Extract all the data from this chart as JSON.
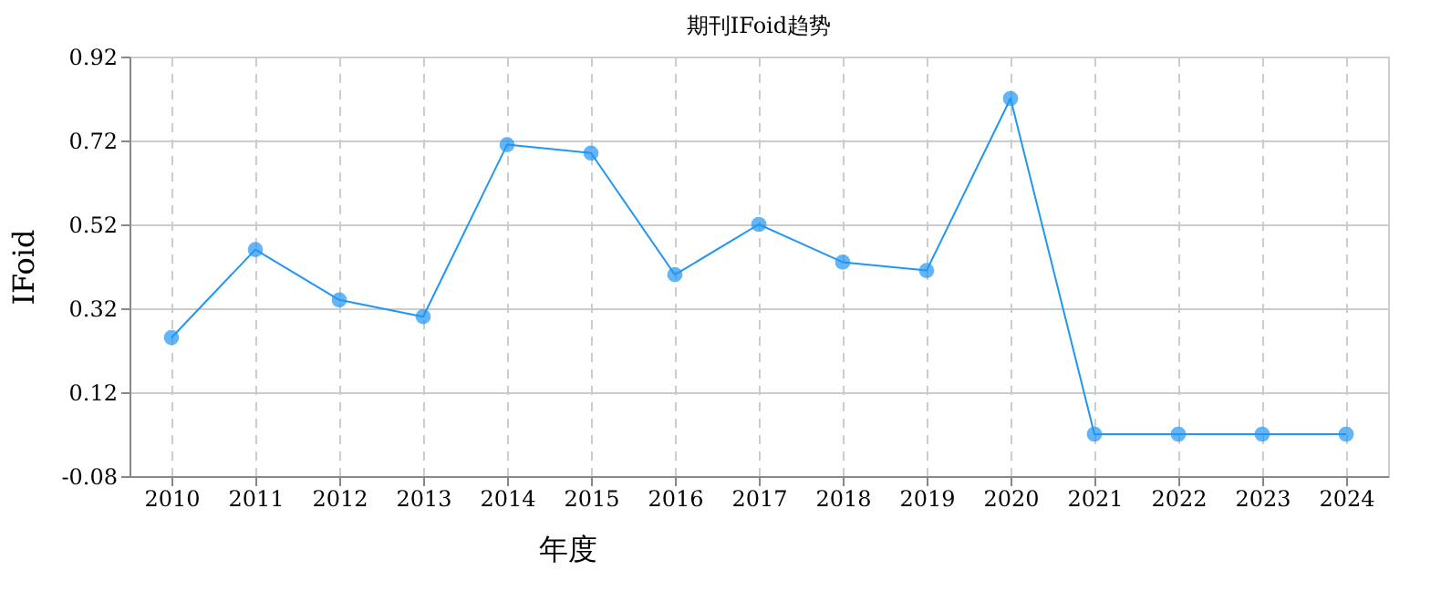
{
  "chart_data": {
    "type": "line",
    "title": "期刊IFoid趋势",
    "xlabel": "年度",
    "ylabel": "IFoid",
    "categories": [
      "2010",
      "2011",
      "2012",
      "2013",
      "2014",
      "2015",
      "2016",
      "2017",
      "2018",
      "2019",
      "2020",
      "2021",
      "2022",
      "2023",
      "2024"
    ],
    "series": [
      {
        "color": "#2196f3",
        "values": [
          0.25,
          0.46,
          0.34,
          0.3,
          0.71,
          0.69,
          0.4,
          0.52,
          0.43,
          0.41,
          0.82,
          0.02,
          0.02,
          0.02,
          0.02
        ]
      }
    ],
    "ylim": [
      -0.08,
      0.92
    ],
    "yticks": [
      -0.08,
      0.12,
      0.32,
      0.52,
      0.72,
      0.92
    ],
    "grid": true,
    "marker": "circle",
    "line_style": "solid"
  }
}
